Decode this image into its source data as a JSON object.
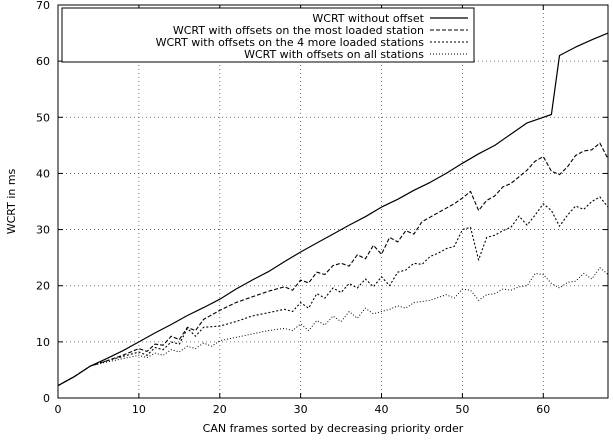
{
  "chart_data": {
    "type": "line",
    "xlabel": "CAN frames sorted by decreasing priority order",
    "ylabel": "WCRT in ms",
    "xlim": [
      0,
      68
    ],
    "ylim": [
      0,
      70
    ],
    "x_ticks": [
      0,
      10,
      20,
      30,
      40,
      50,
      60
    ],
    "y_ticks": [
      0,
      10,
      20,
      30,
      40,
      50,
      60,
      70
    ],
    "grid": true,
    "legend_position": "top-left",
    "series": [
      {
        "name": "WCRT without offset",
        "dash": "solid",
        "points": [
          [
            0,
            2.2
          ],
          [
            2,
            3.8
          ],
          [
            4,
            5.7
          ],
          [
            6,
            7.0
          ],
          [
            8,
            8.4
          ],
          [
            10,
            10.0
          ],
          [
            12,
            11.6
          ],
          [
            14,
            13.1
          ],
          [
            16,
            14.7
          ],
          [
            18,
            16.1
          ],
          [
            20,
            17.6
          ],
          [
            22,
            19.4
          ],
          [
            24,
            21.0
          ],
          [
            26,
            22.5
          ],
          [
            28,
            24.3
          ],
          [
            30,
            26.0
          ],
          [
            32,
            27.6
          ],
          [
            34,
            29.2
          ],
          [
            36,
            30.8
          ],
          [
            38,
            32.3
          ],
          [
            40,
            34.0
          ],
          [
            42,
            35.4
          ],
          [
            44,
            37.0
          ],
          [
            46,
            38.4
          ],
          [
            48,
            40.0
          ],
          [
            50,
            41.8
          ],
          [
            52,
            43.5
          ],
          [
            54,
            45.0
          ],
          [
            56,
            47.0
          ],
          [
            58,
            49.0
          ],
          [
            60,
            50.0
          ],
          [
            61,
            50.5
          ],
          [
            62,
            61.0
          ],
          [
            64,
            62.5
          ],
          [
            66,
            63.8
          ],
          [
            68,
            65.0
          ]
        ]
      },
      {
        "name": "WCRT with offsets on the most loaded station",
        "dash": "dashed",
        "points": [
          [
            0,
            2.2
          ],
          [
            2,
            3.8
          ],
          [
            4,
            5.7
          ],
          [
            6,
            6.6
          ],
          [
            8,
            7.6
          ],
          [
            10,
            8.8
          ],
          [
            11,
            8.3
          ],
          [
            12,
            9.6
          ],
          [
            13,
            9.4
          ],
          [
            14,
            11.0
          ],
          [
            15,
            10.4
          ],
          [
            16,
            12.6
          ],
          [
            17,
            12.0
          ],
          [
            18,
            14.0
          ],
          [
            20,
            15.6
          ],
          [
            22,
            17.0
          ],
          [
            24,
            18.0
          ],
          [
            26,
            19.0
          ],
          [
            28,
            19.8
          ],
          [
            29,
            19.2
          ],
          [
            30,
            21.0
          ],
          [
            31,
            20.5
          ],
          [
            32,
            22.4
          ],
          [
            33,
            22.0
          ],
          [
            34,
            23.6
          ],
          [
            35,
            24.0
          ],
          [
            36,
            23.5
          ],
          [
            37,
            25.5
          ],
          [
            38,
            24.8
          ],
          [
            39,
            27.2
          ],
          [
            40,
            25.6
          ],
          [
            41,
            28.6
          ],
          [
            42,
            27.8
          ],
          [
            43,
            29.8
          ],
          [
            44,
            29.2
          ],
          [
            45,
            31.4
          ],
          [
            46,
            32.2
          ],
          [
            47,
            33.0
          ],
          [
            48,
            33.8
          ],
          [
            49,
            34.6
          ],
          [
            50,
            35.6
          ],
          [
            51,
            36.8
          ],
          [
            52,
            33.4
          ],
          [
            53,
            35.2
          ],
          [
            54,
            36.0
          ],
          [
            55,
            37.6
          ],
          [
            56,
            38.2
          ],
          [
            57,
            39.4
          ],
          [
            58,
            40.6
          ],
          [
            59,
            42.2
          ],
          [
            60,
            43.0
          ],
          [
            61,
            40.4
          ],
          [
            62,
            39.8
          ],
          [
            63,
            41.2
          ],
          [
            64,
            43.2
          ],
          [
            65,
            44.0
          ],
          [
            66,
            44.2
          ],
          [
            67,
            45.4
          ],
          [
            68,
            42.6
          ]
        ]
      },
      {
        "name": "WCRT with offsets on the 4 more loaded stations",
        "dash": "dotted",
        "points": [
          [
            0,
            2.2
          ],
          [
            2,
            3.8
          ],
          [
            4,
            5.7
          ],
          [
            6,
            6.6
          ],
          [
            8,
            7.4
          ],
          [
            10,
            8.2
          ],
          [
            11,
            7.6
          ],
          [
            12,
            9.0
          ],
          [
            13,
            8.6
          ],
          [
            14,
            10.0
          ],
          [
            15,
            9.6
          ],
          [
            16,
            12.4
          ],
          [
            17,
            11.0
          ],
          [
            18,
            12.6
          ],
          [
            20,
            12.8
          ],
          [
            22,
            13.6
          ],
          [
            24,
            14.6
          ],
          [
            26,
            15.2
          ],
          [
            28,
            15.8
          ],
          [
            29,
            15.4
          ],
          [
            30,
            17.0
          ],
          [
            31,
            16.0
          ],
          [
            32,
            18.6
          ],
          [
            33,
            17.8
          ],
          [
            34,
            19.6
          ],
          [
            35,
            18.8
          ],
          [
            36,
            20.4
          ],
          [
            37,
            19.6
          ],
          [
            38,
            21.2
          ],
          [
            39,
            19.8
          ],
          [
            40,
            21.6
          ],
          [
            41,
            20.0
          ],
          [
            42,
            22.4
          ],
          [
            43,
            22.8
          ],
          [
            44,
            24.0
          ],
          [
            45,
            23.8
          ],
          [
            46,
            25.2
          ],
          [
            47,
            25.8
          ],
          [
            48,
            26.6
          ],
          [
            49,
            27.0
          ],
          [
            50,
            30.0
          ],
          [
            51,
            30.4
          ],
          [
            52,
            24.6
          ],
          [
            53,
            28.6
          ],
          [
            54,
            29.0
          ],
          [
            55,
            29.8
          ],
          [
            56,
            30.4
          ],
          [
            57,
            32.4
          ],
          [
            58,
            30.8
          ],
          [
            59,
            32.6
          ],
          [
            60,
            34.6
          ],
          [
            61,
            33.4
          ],
          [
            62,
            30.6
          ],
          [
            63,
            32.6
          ],
          [
            64,
            34.2
          ],
          [
            65,
            33.6
          ],
          [
            66,
            35.0
          ],
          [
            67,
            35.8
          ],
          [
            68,
            34.0
          ]
        ]
      },
      {
        "name": "WCRT with offsets on all stations",
        "dash": "fine-dotted",
        "points": [
          [
            0,
            2.2
          ],
          [
            2,
            3.8
          ],
          [
            4,
            5.7
          ],
          [
            6,
            6.4
          ],
          [
            8,
            7.0
          ],
          [
            10,
            7.6
          ],
          [
            11,
            7.2
          ],
          [
            12,
            8.0
          ],
          [
            13,
            7.6
          ],
          [
            14,
            8.6
          ],
          [
            15,
            8.2
          ],
          [
            16,
            9.2
          ],
          [
            17,
            8.8
          ],
          [
            18,
            9.8
          ],
          [
            19,
            9.2
          ],
          [
            20,
            10.2
          ],
          [
            22,
            10.8
          ],
          [
            24,
            11.4
          ],
          [
            26,
            12.0
          ],
          [
            28,
            12.4
          ],
          [
            29,
            12.0
          ],
          [
            30,
            13.2
          ],
          [
            31,
            12.0
          ],
          [
            32,
            13.8
          ],
          [
            33,
            13.0
          ],
          [
            34,
            14.6
          ],
          [
            35,
            13.6
          ],
          [
            36,
            15.4
          ],
          [
            37,
            14.2
          ],
          [
            38,
            16.0
          ],
          [
            39,
            15.0
          ],
          [
            40,
            15.4
          ],
          [
            41,
            15.8
          ],
          [
            42,
            16.4
          ],
          [
            43,
            16.0
          ],
          [
            44,
            17.0
          ],
          [
            46,
            17.4
          ],
          [
            48,
            18.4
          ],
          [
            49,
            17.8
          ],
          [
            50,
            19.4
          ],
          [
            51,
            19.2
          ],
          [
            52,
            17.4
          ],
          [
            53,
            18.4
          ],
          [
            54,
            18.6
          ],
          [
            55,
            19.4
          ],
          [
            56,
            19.2
          ],
          [
            57,
            19.8
          ],
          [
            58,
            20.0
          ],
          [
            59,
            22.2
          ],
          [
            60,
            22.0
          ],
          [
            61,
            20.4
          ],
          [
            62,
            19.6
          ],
          [
            63,
            20.6
          ],
          [
            64,
            20.8
          ],
          [
            65,
            22.2
          ],
          [
            66,
            21.2
          ],
          [
            67,
            23.2
          ],
          [
            68,
            22.0
          ]
        ]
      }
    ]
  }
}
